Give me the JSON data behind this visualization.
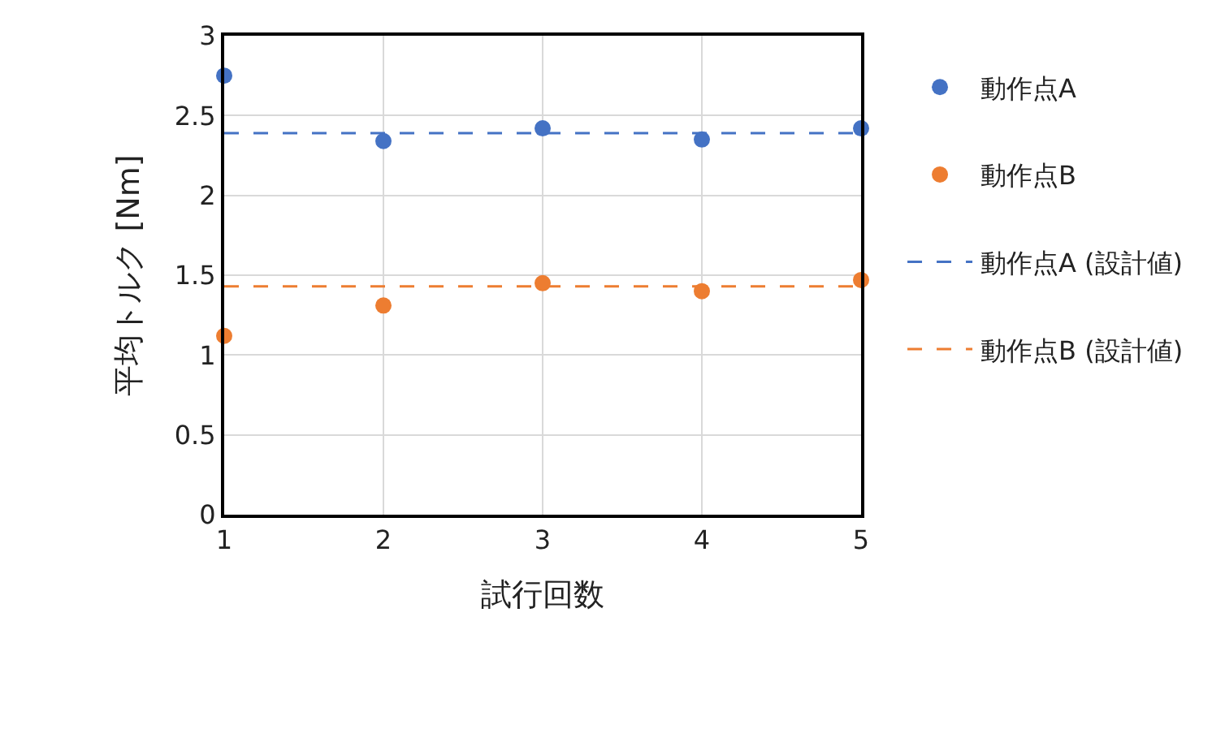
{
  "chart_data": {
    "type": "scatter",
    "xlabel": "試行回数",
    "ylabel": "平均トルク [Nm]",
    "x": [
      1,
      2,
      3,
      4,
      5
    ],
    "xlim": [
      1,
      5
    ],
    "xticks": [
      1,
      2,
      3,
      4,
      5
    ],
    "ylim": [
      0,
      3
    ],
    "yticks": [
      0,
      0.5,
      1,
      1.5,
      2,
      2.5,
      3
    ],
    "grid": true,
    "legend": "right",
    "series": [
      {
        "name": "動作点A",
        "color": "#4472c4",
        "marker": "circle",
        "values": [
          2.75,
          2.34,
          2.42,
          2.35,
          2.42
        ]
      },
      {
        "name": "動作点B",
        "color": "#ed7d31",
        "marker": "circle",
        "values": [
          1.12,
          1.31,
          1.45,
          1.4,
          1.47
        ]
      },
      {
        "name": "動作点A (設計値)",
        "color": "#4472c4",
        "type": "line",
        "marker": "none",
        "line_style": "dashed",
        "values": [
          2.39,
          2.39,
          2.39,
          2.39,
          2.39
        ]
      },
      {
        "name": "動作点B (設計値)",
        "color": "#ed7d31",
        "type": "line",
        "marker": "none",
        "line_style": "dashed",
        "values": [
          1.43,
          1.43,
          1.43,
          1.43,
          1.43
        ]
      }
    ]
  }
}
